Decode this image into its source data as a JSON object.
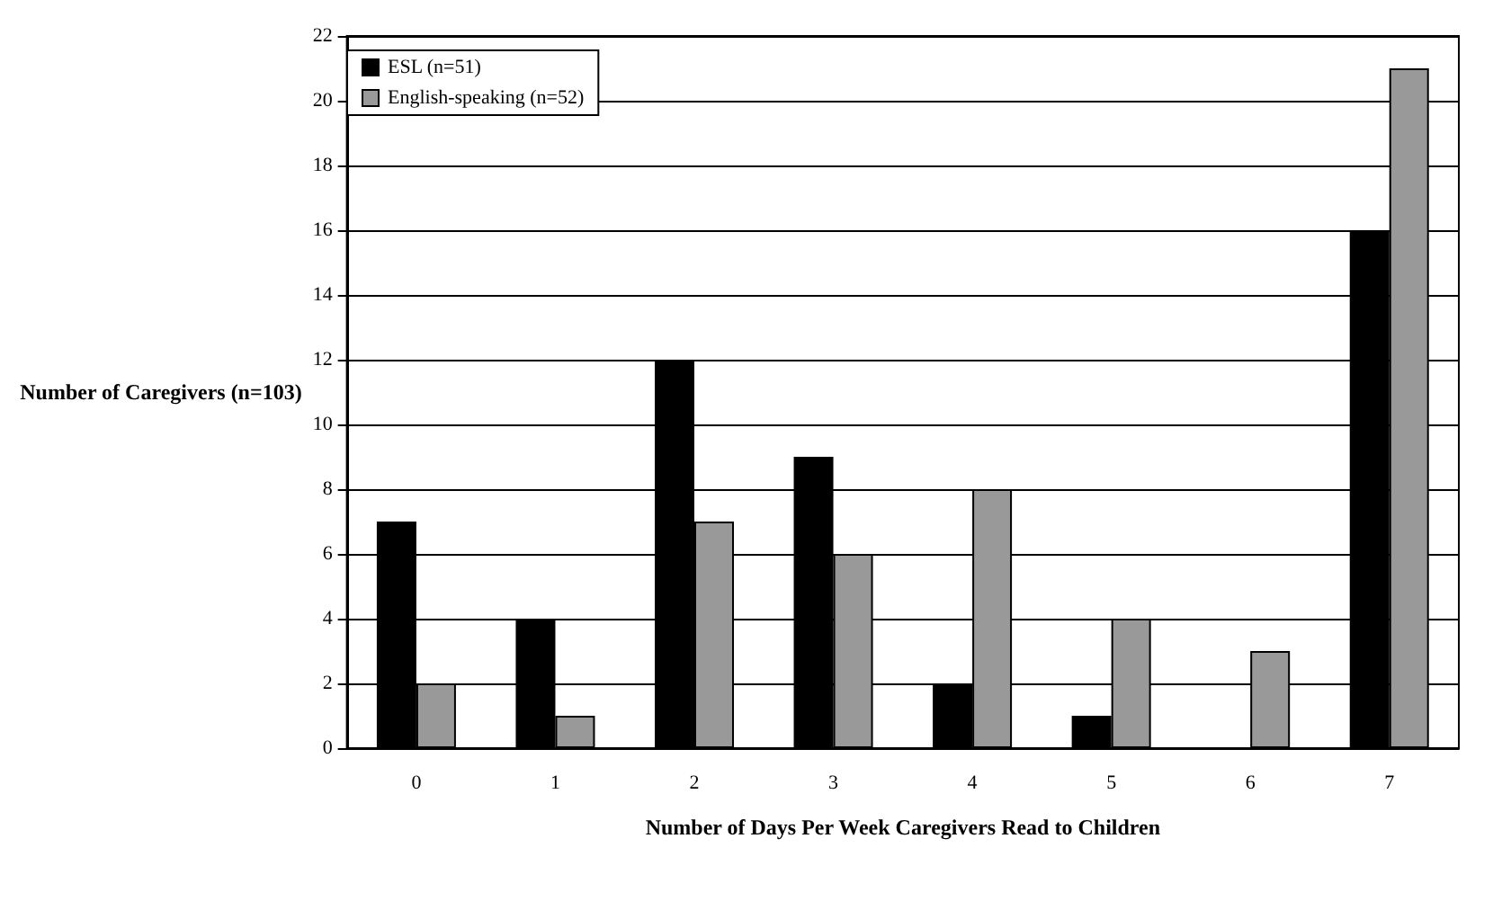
{
  "chart_data": {
    "type": "bar",
    "xlabel": "Number of Days Per Week Caregivers Read to Children",
    "ylabel": "Number of Caregivers (n=103)",
    "categories": [
      "0",
      "1",
      "2",
      "3",
      "4",
      "5",
      "6",
      "7"
    ],
    "series": [
      {
        "name": "ESL (n=51)",
        "color": "#000000",
        "values": [
          7,
          4,
          12,
          9,
          2,
          1,
          0,
          16
        ]
      },
      {
        "name": "English-speaking (n=52)",
        "color": "#999999",
        "values": [
          2,
          1,
          7,
          6,
          8,
          4,
          3,
          21
        ]
      }
    ],
    "ylim": [
      0,
      22
    ],
    "yticks": [
      0,
      2,
      4,
      6,
      8,
      10,
      12,
      14,
      16,
      18,
      20,
      22
    ],
    "grid": "y",
    "legend": "top left"
  }
}
